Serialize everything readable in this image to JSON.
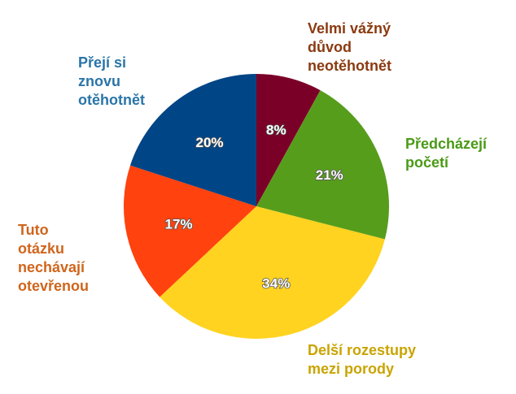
{
  "chart_data": {
    "type": "pie",
    "start_angle_deg": 0,
    "direction": "clockwise",
    "legend": "none",
    "slices": [
      {
        "label": "Velmi vážný\ndůvod\nneotěhotnět",
        "value": 8,
        "display": "8%",
        "color": "#7b0028",
        "label_color": "#8b3a10"
      },
      {
        "label": "Předcházejí\npočetí",
        "value": 21,
        "display": "21%",
        "color": "#579d1c",
        "label_color": "#4a9a16"
      },
      {
        "label": "Delší rozestupy\nmezi porody",
        "value": 34,
        "display": "34%",
        "color": "#ffd320",
        "label_color": "#c9a400"
      },
      {
        "label": "Tuto\notázku\nnechávají\notevřenou",
        "value": 17,
        "display": "17%",
        "color": "#ff420e",
        "label_color": "#d0651c"
      },
      {
        "label": "Přejí si\nznovu\notěhotnět",
        "value": 20,
        "display": "20%",
        "color": "#004586",
        "label_color": "#2a75a8"
      }
    ]
  }
}
